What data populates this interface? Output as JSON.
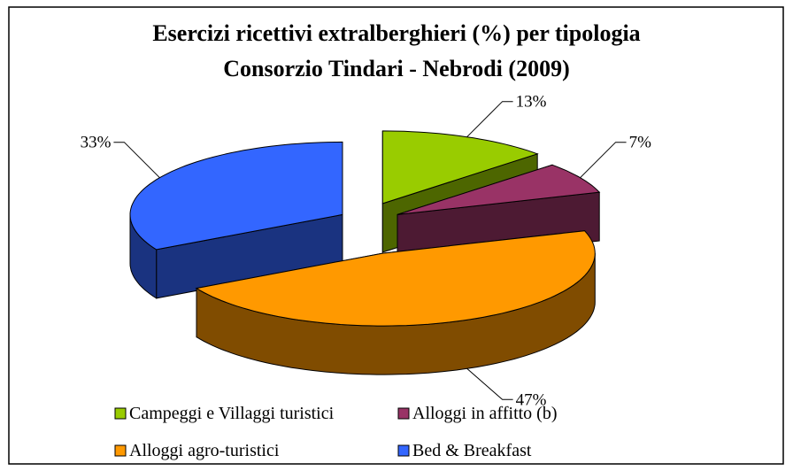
{
  "chart_data": {
    "type": "pie3d",
    "title": [
      "Esercizi ricettivi extralberghieri (%) per tipologia",
      "Consorzio Tindari - Nebrodi (2009)"
    ],
    "categories": [
      "Campeggi e Villaggi turistici",
      "Alloggi in affitto (b)",
      "Alloggi agro-turistici",
      "Bed & Breakfast"
    ],
    "values": [
      13,
      7,
      47,
      33
    ],
    "value_labels": [
      "13%",
      "7%",
      "47%",
      "33%"
    ],
    "colors": [
      "#99cc00",
      "#993366",
      "#ff9900",
      "#3366ff"
    ],
    "side_colors": [
      "#4d6600",
      "#4d1a33",
      "#804c00",
      "#1a3380"
    ],
    "legend": "bottom"
  }
}
